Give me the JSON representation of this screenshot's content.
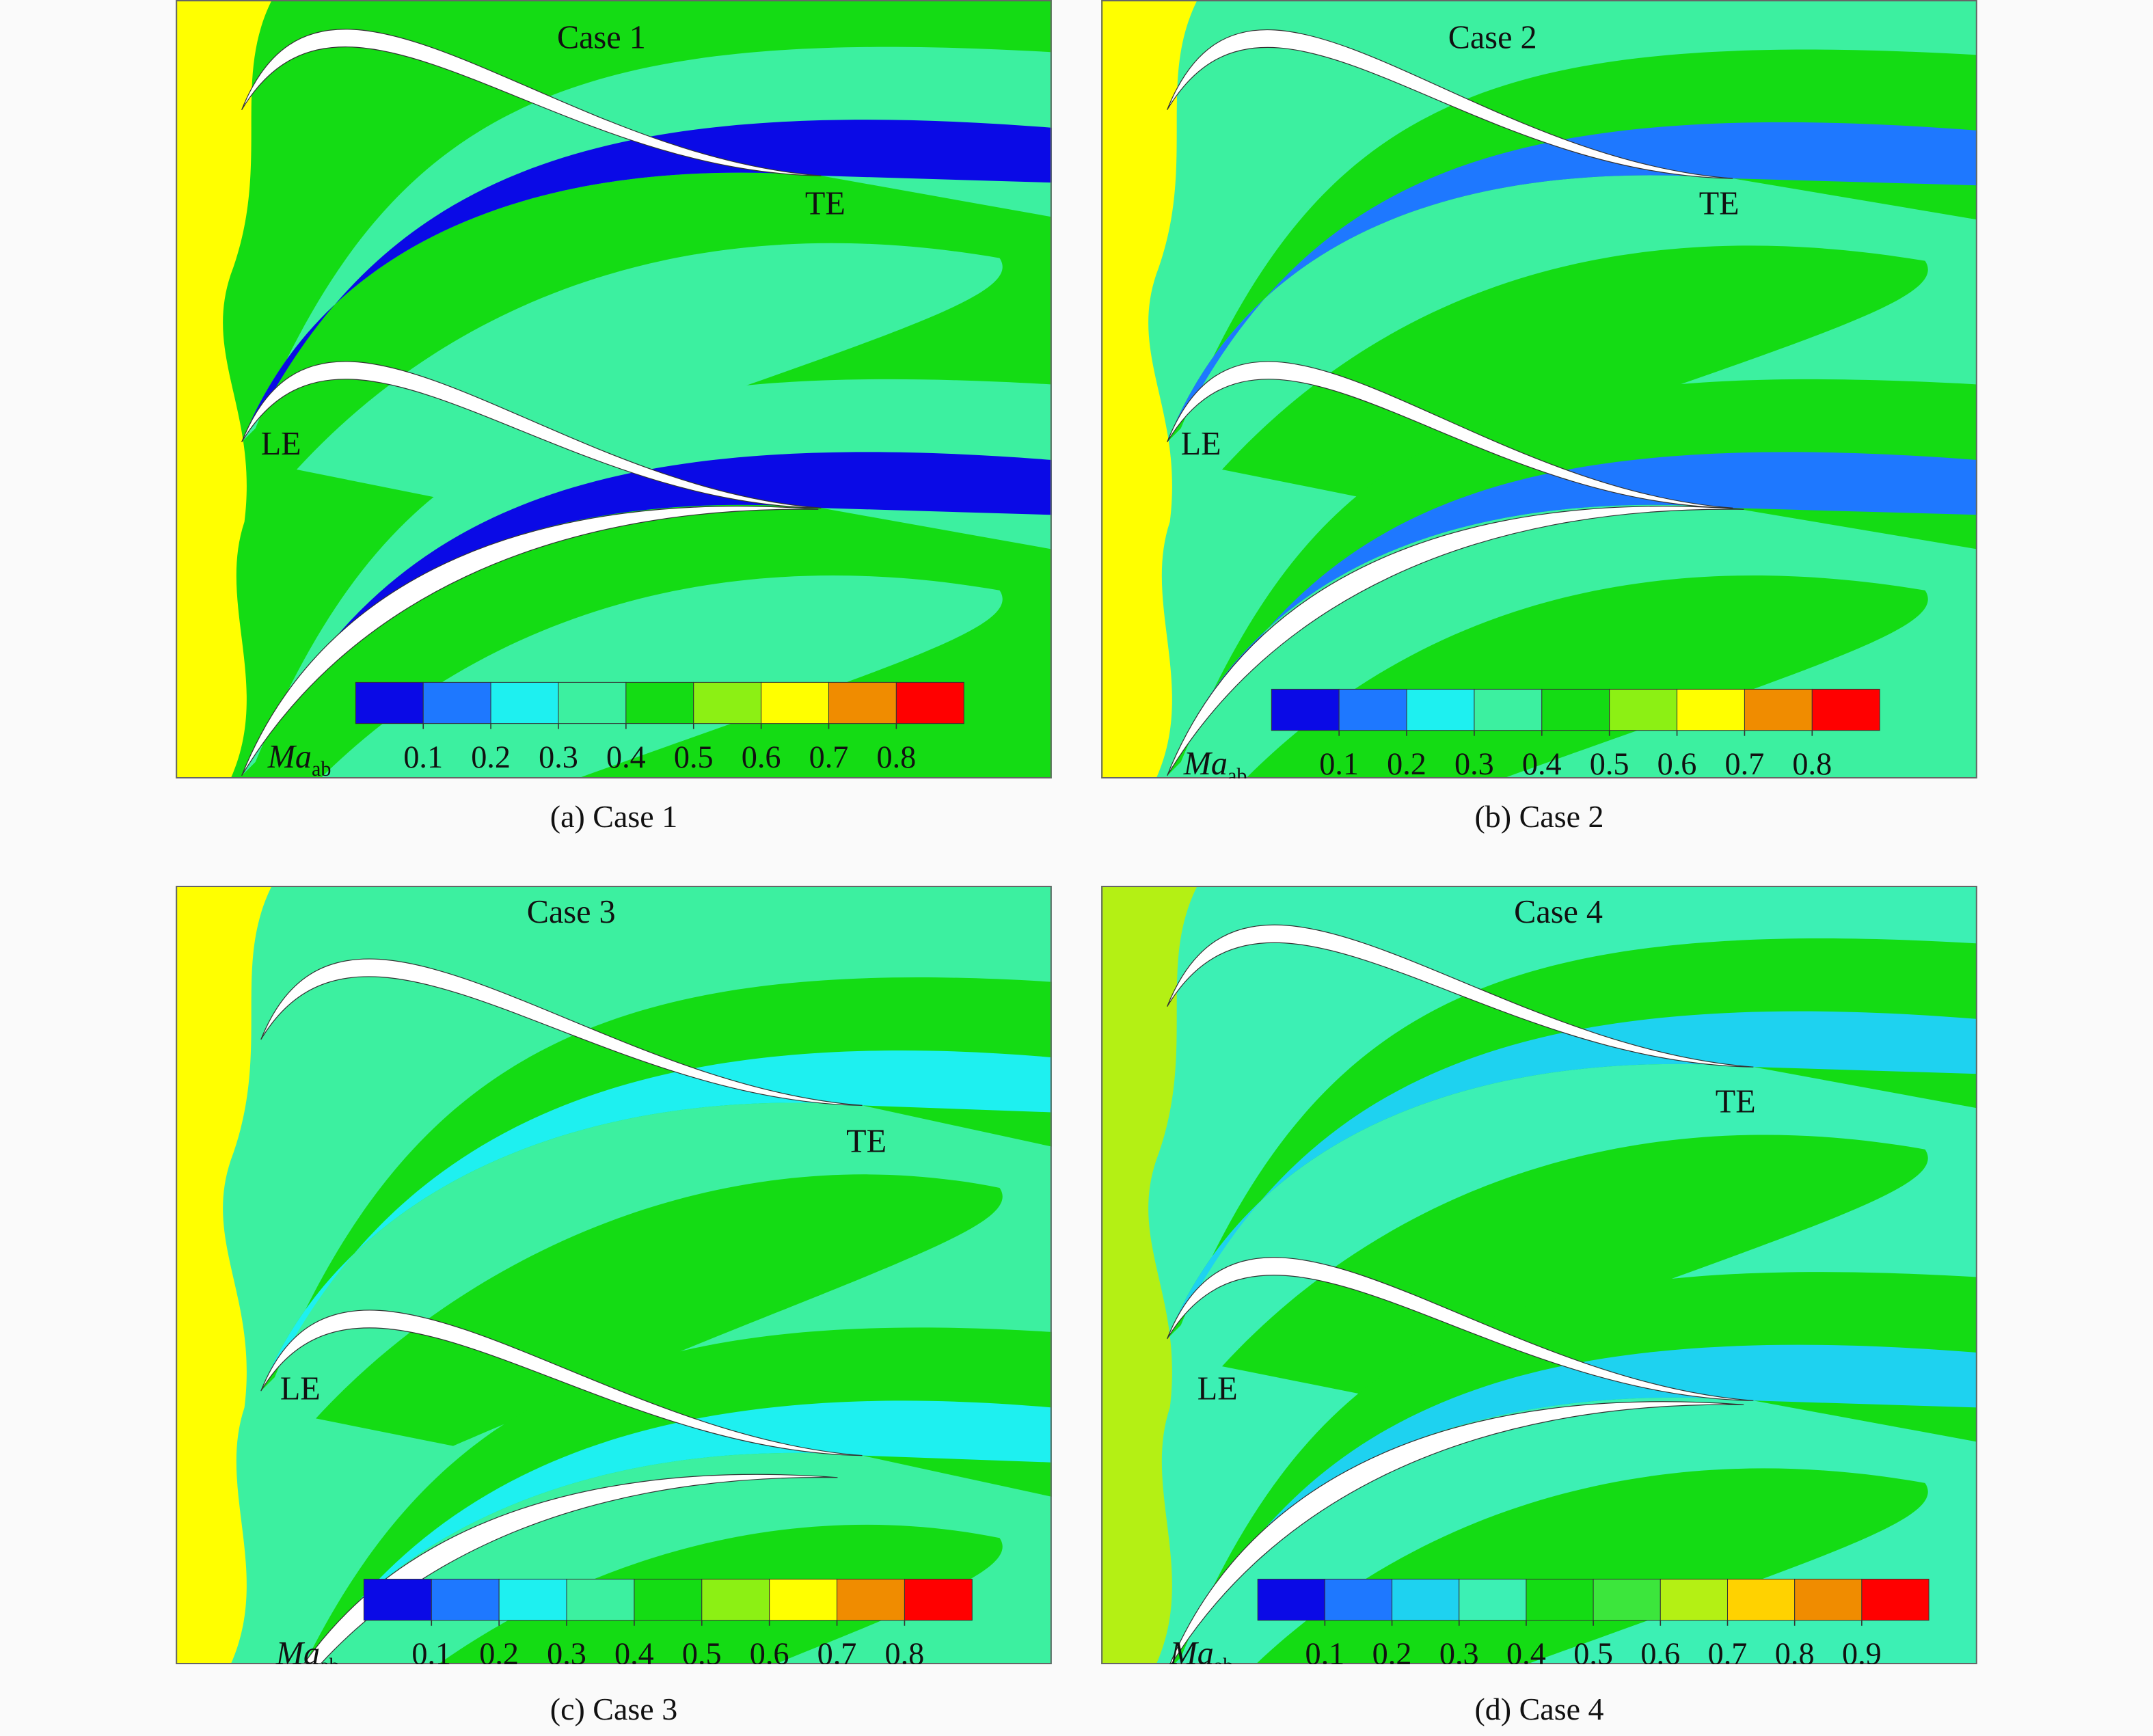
{
  "panels": [
    {
      "title": "Case 1",
      "caption": "(a) Case 1",
      "le_label": "LE",
      "te_label": "TE",
      "colorbar": {
        "label": "Ma",
        "label_sub": "ab",
        "ticks": [
          0.1,
          0.2,
          0.3,
          0.4,
          0.5,
          0.6,
          0.7,
          0.8
        ],
        "colors": [
          "#0a0ae6",
          "#1e78ff",
          "#1ef0f0",
          "#3cf0a0",
          "#14dc14",
          "#8cf014",
          "#ffff00",
          "#f08c00",
          "#ff0000"
        ]
      }
    },
    {
      "title": "Case 2",
      "caption": "(b) Case 2",
      "le_label": "LE",
      "te_label": "TE",
      "colorbar": {
        "label": "Ma",
        "label_sub": "ab",
        "ticks": [
          0.1,
          0.2,
          0.3,
          0.4,
          0.5,
          0.6,
          0.7,
          0.8
        ],
        "colors": [
          "#0a0ae6",
          "#1e78ff",
          "#1ef0f0",
          "#3cf0a0",
          "#14dc14",
          "#8cf014",
          "#ffff00",
          "#f08c00",
          "#ff0000"
        ]
      }
    },
    {
      "title": "Case 3",
      "caption": "(c) Case 3",
      "le_label": "LE",
      "te_label": "TE",
      "colorbar": {
        "label": "Ma",
        "label_sub": "ab",
        "ticks": [
          0.1,
          0.2,
          0.3,
          0.4,
          0.5,
          0.6,
          0.7,
          0.8
        ],
        "colors": [
          "#0a0ae6",
          "#1e78ff",
          "#1ef0f0",
          "#3cf0a0",
          "#14dc14",
          "#8cf014",
          "#ffff00",
          "#f08c00",
          "#ff0000"
        ]
      }
    },
    {
      "title": "Case 4",
      "caption": "(d) Case 4",
      "le_label": "LE",
      "te_label": "TE",
      "colorbar": {
        "label": "Ma",
        "label_sub": "ab",
        "ticks": [
          0.1,
          0.2,
          0.3,
          0.4,
          0.5,
          0.6,
          0.7,
          0.8,
          0.9
        ],
        "colors": [
          "#0a0ae6",
          "#1e78ff",
          "#1ed2f0",
          "#3cf0b4",
          "#14dc14",
          "#3ce63c",
          "#b4f014",
          "#ffd200",
          "#f08c00",
          "#ff0000"
        ]
      }
    }
  ]
}
